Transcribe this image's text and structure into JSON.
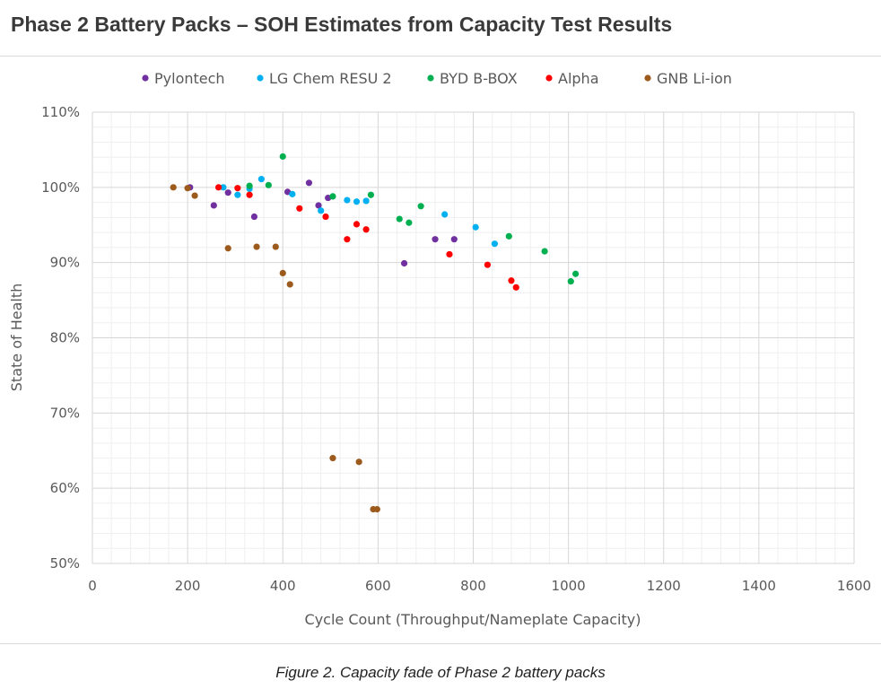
{
  "chart_data": {
    "type": "scatter",
    "title": "Phase 2 Battery Packs – SOH Estimates from Capacity Test Results",
    "xlabel": "Cycle Count (Throughput/Nameplate Capacity)",
    "ylabel": "State of Health",
    "xlim": [
      0,
      1600
    ],
    "ylim": [
      50,
      110
    ],
    "x_ticks": [
      "0",
      "200",
      "400",
      "600",
      "800",
      "1000",
      "1200",
      "1400",
      "1600"
    ],
    "y_ticks": [
      "50%",
      "60%",
      "70%",
      "80%",
      "90%",
      "100%",
      "110%"
    ],
    "grid": true,
    "minor_grid": true,
    "legend_position": "top",
    "series": [
      {
        "name": "Pylontech",
        "color": "#7030a0",
        "points": [
          [
            205,
            100
          ],
          [
            255,
            97.6
          ],
          [
            285,
            99.3
          ],
          [
            340,
            96.1
          ],
          [
            410,
            99.4
          ],
          [
            455,
            100.6
          ],
          [
            475,
            97.6
          ],
          [
            495,
            98.6
          ],
          [
            655,
            89.9
          ],
          [
            720,
            93.1
          ],
          [
            760,
            93.1
          ]
        ]
      },
      {
        "name": "LG Chem RESU 2",
        "color": "#00b0f0",
        "points": [
          [
            275,
            100
          ],
          [
            305,
            99
          ],
          [
            330,
            99.8
          ],
          [
            355,
            101.1
          ],
          [
            420,
            99.1
          ],
          [
            480,
            96.9
          ],
          [
            535,
            98.3
          ],
          [
            555,
            98.1
          ],
          [
            575,
            98.2
          ],
          [
            740,
            96.4
          ],
          [
            805,
            94.7
          ],
          [
            845,
            92.5
          ]
        ]
      },
      {
        "name": "BYD B-BOX",
        "color": "#00b050",
        "points": [
          [
            330,
            100.2
          ],
          [
            370,
            100.3
          ],
          [
            400,
            104.1
          ],
          [
            505,
            98.8
          ],
          [
            585,
            99
          ],
          [
            645,
            95.8
          ],
          [
            665,
            95.3
          ],
          [
            690,
            97.5
          ],
          [
            875,
            93.5
          ],
          [
            950,
            91.5
          ],
          [
            1005,
            87.5
          ],
          [
            1015,
            88.5
          ]
        ]
      },
      {
        "name": "Alpha",
        "color": "#ff0000",
        "points": [
          [
            265,
            100
          ],
          [
            305,
            99.9
          ],
          [
            330,
            99
          ],
          [
            435,
            97.2
          ],
          [
            490,
            96.1
          ],
          [
            535,
            93.1
          ],
          [
            555,
            95.1
          ],
          [
            575,
            94.4
          ],
          [
            750,
            91.1
          ],
          [
            830,
            89.7
          ],
          [
            880,
            87.6
          ],
          [
            890,
            86.7
          ]
        ]
      },
      {
        "name": "GNB Li-ion",
        "color": "#9c5a1d",
        "points": [
          [
            170,
            100
          ],
          [
            200,
            99.9
          ],
          [
            215,
            98.9
          ],
          [
            285,
            91.9
          ],
          [
            345,
            92.1
          ],
          [
            385,
            92.1
          ],
          [
            400,
            88.6
          ],
          [
            415,
            87.1
          ],
          [
            505,
            64
          ],
          [
            560,
            63.5
          ],
          [
            590,
            57.2
          ],
          [
            598,
            57.2
          ]
        ]
      }
    ]
  },
  "caption": "Figure 2. Capacity fade of Phase 2 battery packs"
}
